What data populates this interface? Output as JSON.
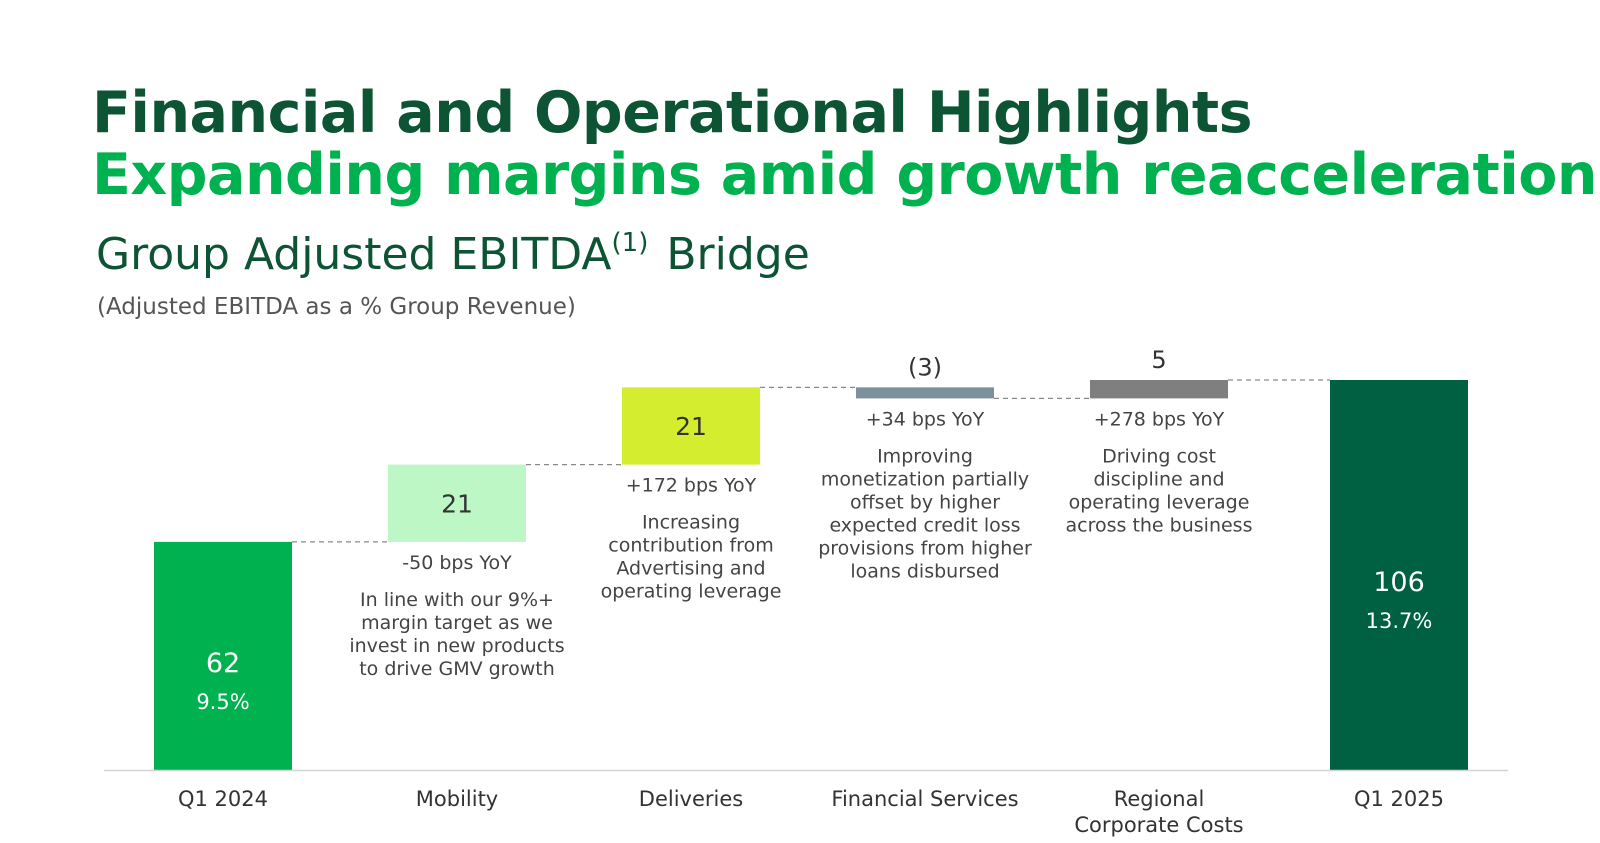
{
  "header": {
    "title": "Financial and Operational Highlights",
    "subtitle": "Expanding margins amid growth reacceleration"
  },
  "chart_data": {
    "type": "bar",
    "subtype": "waterfall",
    "title": "Group Adjusted EBITDA",
    "title_footnote": "(1)",
    "title_suffix": "Bridge",
    "subtitle": "(Adjusted EBITDA as a % Group Revenue)",
    "categories": [
      "Q1 2024",
      "Mobility",
      "Deliveries",
      "Financial Services",
      "Regional Corporate Costs",
      "Q1 2025"
    ],
    "category_lines": [
      [
        "Q1 2024"
      ],
      [
        "Mobility"
      ],
      [
        "Deliveries"
      ],
      [
        "Financial Services"
      ],
      [
        "Regional",
        "Corporate Costs"
      ],
      [
        "Q1 2025"
      ]
    ],
    "values": [
      62,
      21,
      21,
      -3,
      5,
      106
    ],
    "bar_kinds": [
      "total",
      "delta",
      "delta",
      "delta",
      "delta",
      "total"
    ],
    "value_labels": [
      "62",
      "21",
      "21",
      "(3)",
      "5",
      "106"
    ],
    "margin_labels": [
      "9.5%",
      "",
      "",
      "",
      "",
      "13.7%"
    ],
    "yoy_labels": [
      "",
      "-50 bps YoY",
      "+172 bps YoY",
      "+34 bps YoY",
      "+278 bps YoY",
      ""
    ],
    "notes": [
      [],
      [
        "In line with our 9%+",
        "margin target as we",
        "invest in new products",
        "to drive GMV growth"
      ],
      [
        "Increasing",
        "contribution from",
        "Advertising and",
        "operating leverage"
      ],
      [
        "Improving",
        "monetization partially",
        "offset by higher",
        "expected credit loss",
        "provisions from higher",
        "loans disbursed"
      ],
      [
        "Driving cost",
        "discipline and",
        "operating leverage",
        "across the business"
      ],
      []
    ],
    "colors": [
      "#00b14f",
      "#bdf7c6",
      "#d4ed2f",
      "#7a909b",
      "#7f7f7f",
      "#006142"
    ],
    "ylim": [
      0,
      106
    ],
    "grid": false,
    "legend": "none"
  }
}
